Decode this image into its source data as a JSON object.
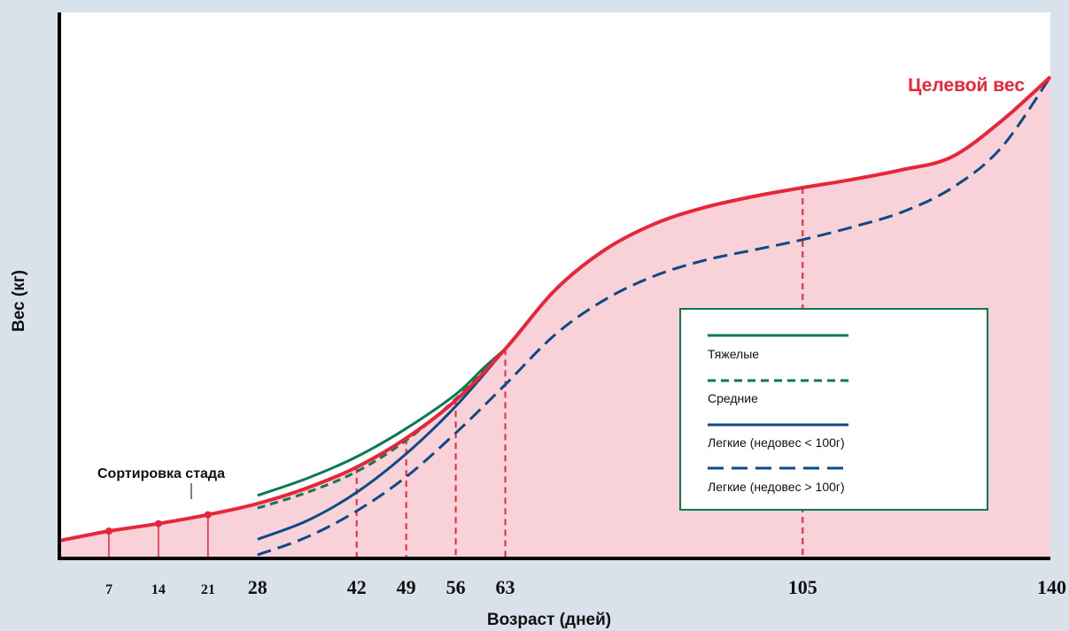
{
  "chart_data": {
    "type": "line",
    "xlabel": "Возраст (дней)",
    "ylabel": "Вес (кг)",
    "xlim": [
      0,
      140
    ],
    "x_ticks": [
      7,
      14,
      21,
      28,
      42,
      49,
      56,
      63,
      105,
      140
    ],
    "target_label": "Целевой вес",
    "sort_label": "Сортировка стада",
    "sort_day": 28,
    "target_markers": [
      7,
      14,
      21
    ],
    "drop_lines": [
      42,
      49,
      56,
      63,
      105
    ],
    "series": [
      {
        "name": "Целевой вес",
        "style": "solid",
        "color": "#e8263a",
        "x": [
          0,
          7,
          14,
          21,
          28,
          35,
          42,
          49,
          56,
          63,
          70,
          77,
          84,
          91,
          98,
          105,
          112,
          119,
          126,
          133,
          140
        ],
        "y": [
          1.9,
          3.2,
          4.2,
          5.4,
          6.9,
          9.0,
          11.8,
          15.7,
          20.8,
          27.7,
          35.6,
          41.0,
          44.5,
          46.7,
          48.2,
          49.4,
          50.5,
          51.8,
          53.5,
          58.3,
          64.3
        ]
      },
      {
        "name": "Тяжелые",
        "style": "solid",
        "color": "#0a7a50",
        "x": [
          28,
          35,
          42,
          49,
          56,
          60,
          63
        ],
        "y": [
          8.0,
          10.3,
          13.2,
          17.0,
          21.6,
          25.2,
          27.7
        ]
      },
      {
        "name": "Средние",
        "style": "dashed",
        "color": "#0a7a50",
        "x": [
          28,
          35,
          42,
          49,
          56,
          63
        ],
        "y": [
          6.3,
          8.4,
          11.2,
          15.4,
          21.0,
          27.7
        ]
      },
      {
        "name": "Легкие (недовес < 100г)",
        "style": "solid",
        "color": "#0c4a86",
        "x": [
          28,
          35,
          42,
          49,
          56,
          63
        ],
        "y": [
          2.1,
          4.6,
          8.4,
          13.6,
          20.0,
          27.7
        ]
      },
      {
        "name": "Легкие (недовес > 100г)",
        "style": "dashed",
        "color": "#0c4a86",
        "x": [
          28,
          35,
          42,
          49,
          56,
          63,
          70,
          77,
          84,
          91,
          98,
          105,
          112,
          119,
          126,
          133,
          140
        ],
        "y": [
          0.0,
          2.4,
          5.9,
          10.5,
          16.4,
          22.9,
          29.6,
          34.3,
          37.5,
          39.6,
          41.0,
          42.4,
          44.1,
          46.1,
          49.3,
          54.7,
          64.3
        ]
      }
    ],
    "colors": {
      "target": "#e8263a",
      "fill": "#f8d2d8",
      "green": "#0a7a50",
      "blue": "#0c4a86",
      "background": "#d9e2ea"
    }
  }
}
